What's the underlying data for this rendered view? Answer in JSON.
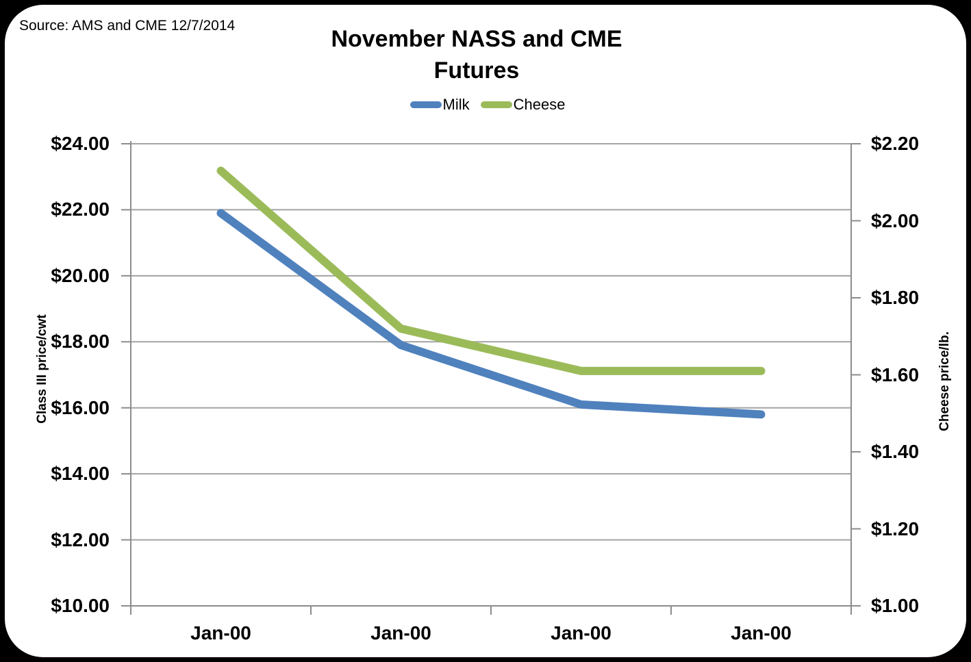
{
  "source_note": "Source: AMS and CME 12/7/2014",
  "title": {
    "line1": "November NASS and CME",
    "line2": "Futures"
  },
  "legend": {
    "items": [
      {
        "label": "Milk",
        "color": "#4F81BD"
      },
      {
        "label": "Cheese",
        "color": "#9BBB59"
      }
    ]
  },
  "colors": {
    "milk_line": "#4F81BD",
    "cheese_line": "#9BBB59",
    "gridline": "#a3a3a3",
    "axis_line": "#8c8c8c",
    "frame_border": "#000000",
    "background": "#ffffff"
  },
  "chart_data": {
    "type": "line",
    "title": "November NASS and CME Futures",
    "annotation": "Source: AMS and CME 12/7/2014",
    "categories": [
      "Jan-00",
      "Jan-00",
      "Jan-00",
      "Jan-00"
    ],
    "series": [
      {
        "name": "Milk",
        "yaxis": "left",
        "color": "#4F81BD",
        "values": [
          21.9,
          17.9,
          16.1,
          15.8
        ]
      },
      {
        "name": "Cheese",
        "yaxis": "right",
        "color": "#9BBB59",
        "values": [
          2.13,
          1.72,
          1.61,
          1.61
        ]
      }
    ],
    "left_axis": {
      "title": "Class III price/cwt",
      "min": 10,
      "max": 24,
      "step": 2,
      "tick_labels": [
        "$24.00",
        "$22.00",
        "$20.00",
        "$18.00",
        "$16.00",
        "$14.00",
        "$12.00",
        "$10.00"
      ]
    },
    "right_axis": {
      "title": "Cheese price/lb.",
      "min": 1.0,
      "max": 2.2,
      "step": 0.2,
      "tick_labels": [
        "$2.20",
        "$2.00",
        "$1.80",
        "$1.60",
        "$1.40",
        "$1.20",
        "$1.00"
      ]
    },
    "grid": true,
    "legend_position": "top-center"
  }
}
